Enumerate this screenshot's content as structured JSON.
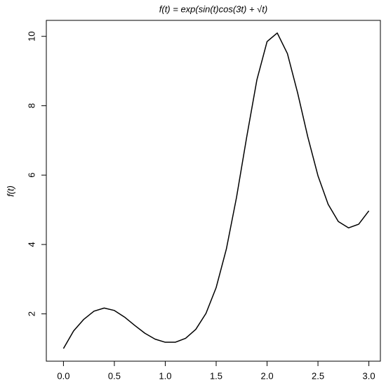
{
  "chart_data": {
    "type": "line",
    "title": "f(t) = exp(sin(t)cos(3t) + √t)",
    "y_label": "f(t)",
    "x": [
      0,
      0.1,
      0.2,
      0.3,
      0.4,
      0.5,
      0.6,
      0.7,
      0.8,
      0.9,
      1.0,
      1.1,
      1.2,
      1.3,
      1.4,
      1.5,
      1.6,
      1.7,
      1.8,
      1.9,
      2.0,
      2.1,
      2.2,
      2.3,
      2.4,
      2.5,
      2.6,
      2.7,
      2.8,
      2.9,
      3.0
    ],
    "values": [
      1,
      1.509,
      1.843,
      2.078,
      2.168,
      2.098,
      1.908,
      1.668,
      1.441,
      1.272,
      1.182,
      1.184,
      1.296,
      1.554,
      2.014,
      2.758,
      3.867,
      5.358,
      7.097,
      8.744,
      9.849,
      10.096,
      9.501,
      8.372,
      7.101,
      5.981,
      5.157,
      4.661,
      4.479,
      4.585,
      4.97
    ],
    "color": "#000000",
    "xlim": [
      -0.12,
      3.12
    ],
    "ylim": [
      0.636,
      10.46
    ],
    "xticks": [
      {
        "value": 0,
        "label": "0.0"
      },
      0.5,
      {
        "value": 1,
        "label": "1.0"
      },
      1.5,
      {
        "value": 2,
        "label": "2.0"
      },
      2.5,
      {
        "value": 3,
        "label": "3.0"
      }
    ],
    "yticks": [
      2,
      4,
      6,
      8,
      10
    ]
  }
}
